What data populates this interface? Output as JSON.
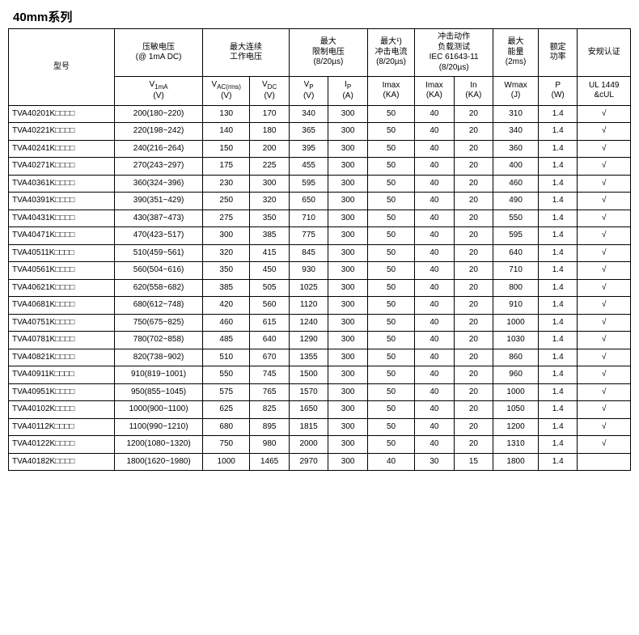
{
  "title": "40mm系列",
  "header": {
    "group": [
      "型号",
      "压敏电压\n(@ 1mA DC)",
      "最大连续\n工作电压",
      "最大\n限制电压\n(8/20µs)",
      "最大¹)\n冲击电流\n(8/20µs)",
      "冲击动作\n负载测试\nIEC 61643-11\n(8/20µs)",
      "最大\n能量\n(2ms)",
      "额定\n功率",
      "安规认证"
    ],
    "sub": [
      {
        "html": "V<sub>1mA</sub><br>(V)"
      },
      {
        "html": "V<sub>AC(rms)</sub><br>(V)"
      },
      {
        "html": "V<sub>DC</sub><br>(V)"
      },
      {
        "html": "V<sub>P</sub><br>(V)"
      },
      {
        "html": "I<sub>P</sub><br>(A)"
      },
      {
        "html": "Imax<br>(KA)"
      },
      {
        "html": "Imax<br>(KA)"
      },
      {
        "html": "In<br>(KA)"
      },
      {
        "html": "Wmax<br>(J)"
      },
      {
        "html": "P<br>(W)"
      },
      {
        "html": "UL 1449<br>&amp;cUL"
      }
    ]
  },
  "rows": [
    [
      "TVA40201K□□□□",
      "200(180~220)",
      "130",
      "170",
      "340",
      "300",
      "50",
      "40",
      "20",
      "310",
      "1.4",
      "√"
    ],
    [
      "TVA40221K□□□□",
      "220(198~242)",
      "140",
      "180",
      "365",
      "300",
      "50",
      "40",
      "20",
      "340",
      "1.4",
      "√"
    ],
    [
      "TVA40241K□□□□",
      "240(216~264)",
      "150",
      "200",
      "395",
      "300",
      "50",
      "40",
      "20",
      "360",
      "1.4",
      "√"
    ],
    [
      "TVA40271K□□□□",
      "270(243~297)",
      "175",
      "225",
      "455",
      "300",
      "50",
      "40",
      "20",
      "400",
      "1.4",
      "√"
    ],
    [
      "TVA40361K□□□□",
      "360(324~396)",
      "230",
      "300",
      "595",
      "300",
      "50",
      "40",
      "20",
      "460",
      "1.4",
      "√"
    ],
    [
      "TVA40391K□□□□",
      "390(351~429)",
      "250",
      "320",
      "650",
      "300",
      "50",
      "40",
      "20",
      "490",
      "1.4",
      "√"
    ],
    [
      "TVA40431K□□□□",
      "430(387~473)",
      "275",
      "350",
      "710",
      "300",
      "50",
      "40",
      "20",
      "550",
      "1.4",
      "√"
    ],
    [
      "TVA40471K□□□□",
      "470(423~517)",
      "300",
      "385",
      "775",
      "300",
      "50",
      "40",
      "20",
      "595",
      "1.4",
      "√"
    ],
    [
      "TVA40511K□□□□",
      "510(459~561)",
      "320",
      "415",
      "845",
      "300",
      "50",
      "40",
      "20",
      "640",
      "1.4",
      "√"
    ],
    [
      "TVA40561K□□□□",
      "560(504~616)",
      "350",
      "450",
      "930",
      "300",
      "50",
      "40",
      "20",
      "710",
      "1.4",
      "√"
    ],
    [
      "TVA40621K□□□□",
      "620(558~682)",
      "385",
      "505",
      "1025",
      "300",
      "50",
      "40",
      "20",
      "800",
      "1.4",
      "√"
    ],
    [
      "TVA40681K□□□□",
      "680(612~748)",
      "420",
      "560",
      "1120",
      "300",
      "50",
      "40",
      "20",
      "910",
      "1.4",
      "√"
    ],
    [
      "TVA40751K□□□□",
      "750(675~825)",
      "460",
      "615",
      "1240",
      "300",
      "50",
      "40",
      "20",
      "1000",
      "1.4",
      "√"
    ],
    [
      "TVA40781K□□□□",
      "780(702~858)",
      "485",
      "640",
      "1290",
      "300",
      "50",
      "40",
      "20",
      "1030",
      "1.4",
      "√"
    ],
    [
      "TVA40821K□□□□",
      "820(738~902)",
      "510",
      "670",
      "1355",
      "300",
      "50",
      "40",
      "20",
      "860",
      "1.4",
      "√"
    ],
    [
      "TVA40911K□□□□",
      "910(819~1001)",
      "550",
      "745",
      "1500",
      "300",
      "50",
      "40",
      "20",
      "960",
      "1.4",
      "√"
    ],
    [
      "TVA40951K□□□□",
      "950(855~1045)",
      "575",
      "765",
      "1570",
      "300",
      "50",
      "40",
      "20",
      "1000",
      "1.4",
      "√"
    ],
    [
      "TVA40102K□□□□",
      "1000(900~1100)",
      "625",
      "825",
      "1650",
      "300",
      "50",
      "40",
      "20",
      "1050",
      "1.4",
      "√"
    ],
    [
      "TVA40112K□□□□",
      "1100(990~1210)",
      "680",
      "895",
      "1815",
      "300",
      "50",
      "40",
      "20",
      "1200",
      "1.4",
      "√"
    ],
    [
      "TVA40122K□□□□",
      "1200(1080~1320)",
      "750",
      "980",
      "2000",
      "300",
      "50",
      "40",
      "20",
      "1310",
      "1.4",
      "√"
    ],
    [
      "TVA40182K□□□□",
      "1800(1620~1980)",
      "1000",
      "1465",
      "2970",
      "300",
      "40",
      "30",
      "15",
      "1800",
      "1.4",
      ""
    ]
  ]
}
